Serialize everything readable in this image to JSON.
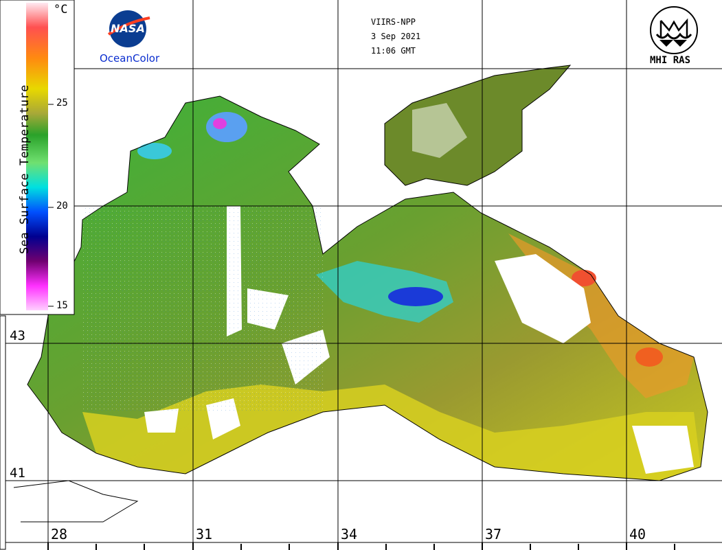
{
  "header": {
    "satellite": "VIIRS-NPP",
    "date": "3 Sep 2021",
    "time": "11:06 GMT"
  },
  "logos": {
    "left_caption": "OceanColor",
    "left_emblem_text": "NASA",
    "right_caption": "MHI RAS"
  },
  "legend": {
    "title": "Sea Surface Temperature",
    "unit": "°C",
    "ticks": [
      "25",
      "20",
      "15"
    ],
    "colors": [
      "#ffe8f0",
      "#f44",
      "#f80",
      "#dd0",
      "#aa3",
      "#2a2",
      "#5d5",
      "#0dd",
      "#04f",
      "#008",
      "#606",
      "#f0f",
      "#fcf"
    ]
  },
  "axes": {
    "latitudes": [
      "43",
      "41"
    ],
    "longitudes": [
      "28",
      "31",
      "34",
      "37",
      "40"
    ]
  },
  "colors": {
    "grid": "#000000",
    "land": "#ffffff",
    "coast": "#000000"
  }
}
